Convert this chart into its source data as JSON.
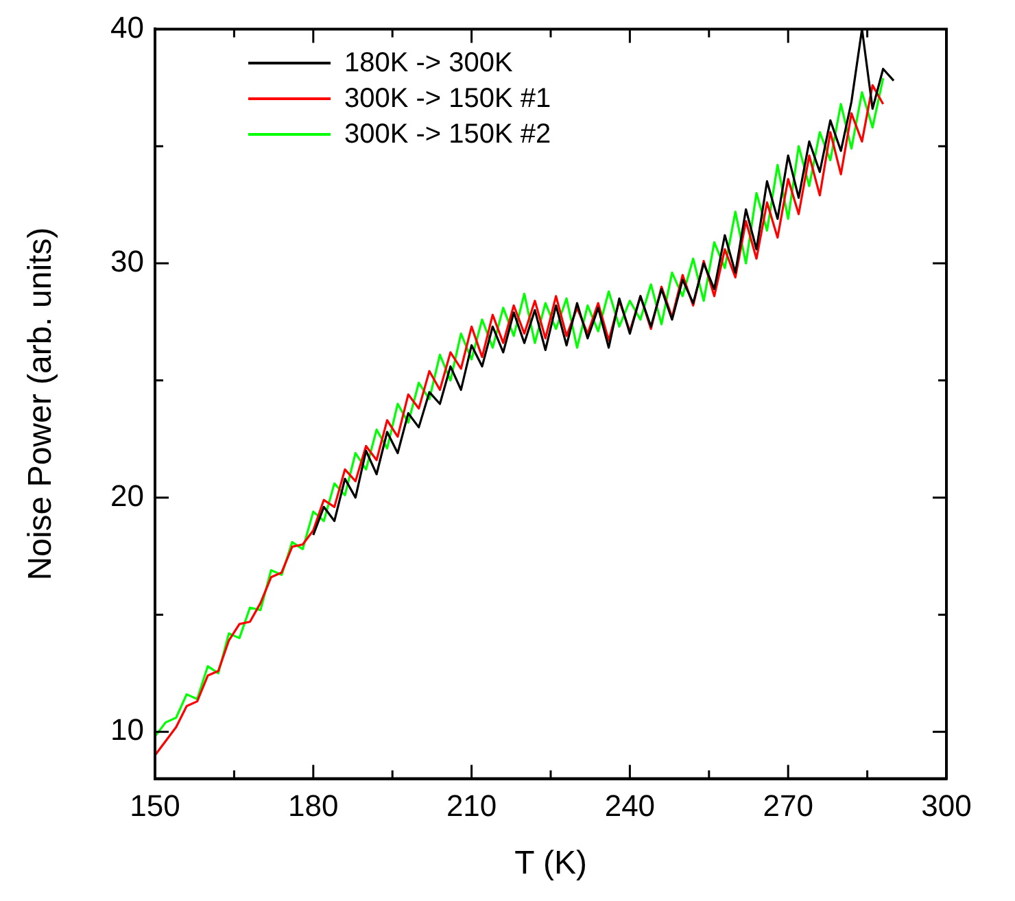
{
  "chart_data": {
    "type": "line",
    "xlabel": "T (K)",
    "ylabel": "Noise Power (arb. units)",
    "xlim": [
      150,
      300
    ],
    "xticks": [
      150,
      {
        "value": 165,
        "label": null
      },
      180,
      {
        "value": 195,
        "label": null
      },
      210,
      {
        "value": 225,
        "label": null
      },
      240,
      {
        "value": 255,
        "label": null
      },
      270,
      {
        "value": 285,
        "label": null
      },
      300
    ],
    "ylim": [
      8,
      40
    ],
    "yticks": [
      10,
      {
        "value": 15,
        "label": null
      },
      20,
      {
        "value": 25,
        "label": null
      },
      30,
      {
        "value": 35,
        "label": null
      },
      40
    ],
    "grid": false,
    "legend": "top left",
    "marker": "none",
    "line_style": "solid",
    "series": [
      {
        "name": "180K -> 300K",
        "color": "#000000",
        "x": [
          180,
          182,
          184,
          186,
          188,
          190,
          192,
          194,
          196,
          198,
          200,
          202,
          204,
          206,
          208,
          210,
          212,
          214,
          216,
          218,
          220,
          222,
          224,
          226,
          228,
          230,
          232,
          234,
          236,
          238,
          240,
          242,
          244,
          246,
          248,
          250,
          252,
          254,
          256,
          258,
          260,
          262,
          264,
          266,
          268,
          270,
          272,
          274,
          276,
          278,
          280,
          282,
          284,
          286,
          288,
          290
        ],
        "values": [
          18.4,
          19.6,
          19.0,
          20.8,
          20.0,
          22.0,
          21.0,
          22.8,
          21.9,
          23.6,
          23.0,
          24.5,
          24.0,
          25.6,
          24.6,
          26.5,
          25.6,
          27.3,
          26.2,
          27.9,
          26.6,
          28.0,
          26.3,
          28.2,
          26.5,
          28.3,
          26.8,
          28.1,
          26.4,
          28.5,
          27.0,
          28.6,
          27.3,
          28.9,
          27.6,
          29.3,
          28.3,
          30.0,
          28.9,
          31.2,
          29.6,
          32.3,
          30.6,
          33.5,
          31.9,
          34.6,
          32.8,
          35.2,
          33.9,
          36.1,
          34.8,
          36.9,
          40.0,
          36.6,
          38.3,
          37.8
        ]
      },
      {
        "name": "300K -> 150K #1",
        "color": "#ff0000",
        "x": [
          150,
          152,
          154,
          156,
          158,
          160,
          162,
          164,
          166,
          168,
          170,
          172,
          174,
          176,
          178,
          180,
          182,
          184,
          186,
          188,
          190,
          192,
          194,
          196,
          198,
          200,
          202,
          204,
          206,
          208,
          210,
          212,
          214,
          216,
          218,
          220,
          222,
          224,
          226,
          228,
          230,
          232,
          234,
          236,
          238,
          240,
          242,
          244,
          246,
          248,
          250,
          252,
          254,
          256,
          258,
          260,
          262,
          264,
          266,
          268,
          270,
          272,
          274,
          276,
          278,
          280,
          282,
          284,
          286,
          288
        ],
        "values": [
          9.0,
          9.6,
          10.2,
          11.1,
          11.3,
          12.4,
          12.6,
          13.9,
          14.6,
          14.7,
          15.5,
          16.6,
          16.8,
          17.9,
          18.0,
          18.6,
          19.9,
          19.6,
          21.2,
          20.7,
          22.2,
          21.6,
          23.3,
          22.6,
          24.4,
          23.8,
          25.4,
          24.6,
          26.2,
          25.5,
          27.3,
          26.0,
          27.8,
          26.6,
          28.2,
          27.0,
          28.4,
          26.8,
          28.6,
          26.9,
          28.1,
          27.0,
          28.3,
          26.7,
          28.4,
          27.1,
          28.6,
          27.2,
          29.0,
          27.7,
          29.5,
          28.2,
          30.1,
          28.6,
          30.6,
          29.4,
          31.8,
          30.2,
          32.6,
          31.1,
          33.6,
          32.1,
          34.6,
          32.9,
          35.6,
          33.8,
          36.4,
          35.2,
          37.6,
          36.8
        ]
      },
      {
        "name": "300K -> 150K #2",
        "color": "#00ff00",
        "x": [
          150,
          152,
          154,
          156,
          158,
          160,
          162,
          164,
          166,
          168,
          170,
          172,
          174,
          176,
          178,
          180,
          182,
          184,
          186,
          188,
          190,
          192,
          194,
          196,
          198,
          200,
          202,
          204,
          206,
          208,
          210,
          212,
          214,
          216,
          218,
          220,
          222,
          224,
          226,
          228,
          230,
          232,
          234,
          236,
          238,
          240,
          242,
          244,
          246,
          248,
          250,
          252,
          254,
          256,
          258,
          260,
          262,
          264,
          266,
          268,
          270,
          272,
          274,
          276,
          278,
          280,
          282,
          284,
          286,
          288
        ],
        "values": [
          9.8,
          10.4,
          10.6,
          11.6,
          11.4,
          12.8,
          12.5,
          14.2,
          14.0,
          15.3,
          15.2,
          16.9,
          16.7,
          18.1,
          17.8,
          19.4,
          19.0,
          20.6,
          20.1,
          21.9,
          21.2,
          22.9,
          22.1,
          24.0,
          23.2,
          24.9,
          24.2,
          26.1,
          25.0,
          27.0,
          25.9,
          27.6,
          26.4,
          28.1,
          26.9,
          28.7,
          26.6,
          28.3,
          27.2,
          28.5,
          26.4,
          28.2,
          27.1,
          28.8,
          27.3,
          28.4,
          27.6,
          29.1,
          27.4,
          29.6,
          28.6,
          30.2,
          28.4,
          30.9,
          29.8,
          32.2,
          30.0,
          33.0,
          31.4,
          34.2,
          31.9,
          35.0,
          33.3,
          35.6,
          34.4,
          36.8,
          34.9,
          37.3,
          35.8,
          37.9
        ]
      }
    ]
  }
}
